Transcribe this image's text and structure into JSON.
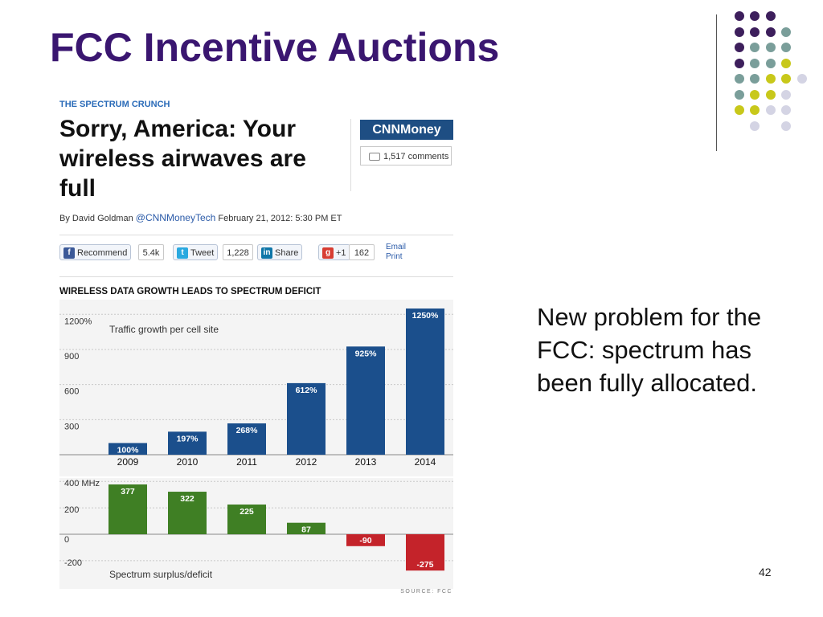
{
  "slide": {
    "title": "FCC Incentive Auctions",
    "body_text": "New problem for the FCC: spectrum has been fully allocated.",
    "page_number": "42"
  },
  "article": {
    "kicker": "THE SPECTRUM CRUNCH",
    "headline": "Sorry, America: Your wireless airwaves are full",
    "byline_prefix": "By David Goldman",
    "byline_handle": "@CNNMoneyTech",
    "byline_date": "February 21, 2012: 5:30 PM ET",
    "brand": "CNNMoney",
    "comments": "1,517 comments",
    "share_buttons": [
      {
        "label": "Recommend",
        "count": "5.4k",
        "icon": "facebook-icon",
        "color": "#3b5998"
      },
      {
        "label": "Tweet",
        "count": "1,228",
        "icon": "twitter-icon",
        "color": "#2aa9e0"
      },
      {
        "label": "Share",
        "count": "",
        "icon": "linkedin-icon",
        "color": "#0e76a8"
      },
      {
        "label": "+1",
        "count": "162",
        "icon": "google-plus-icon",
        "color": "#d73d32"
      }
    ],
    "email_label": "Email",
    "print_label": "Print"
  },
  "chart_data": [
    {
      "type": "bar",
      "title": "WIRELESS DATA GROWTH LEADS TO SPECTRUM DEFICIT",
      "annotation": "Traffic growth per cell site",
      "categories": [
        "2009",
        "2010",
        "2011",
        "2012",
        "2013",
        "2014"
      ],
      "values": [
        100,
        197,
        268,
        612,
        925,
        1250
      ],
      "value_labels": [
        "100%",
        "197%",
        "268%",
        "612%",
        "925%",
        "1250%"
      ],
      "yticks": [
        "300",
        "600",
        "900",
        "1200%"
      ],
      "ytick_values": [
        300,
        600,
        900,
        1200
      ],
      "ylim": [
        0,
        1250
      ],
      "grid": true,
      "color": "#1b4f8c"
    },
    {
      "type": "bar",
      "annotation": "Spectrum surplus/deficit",
      "categories": [
        "2009",
        "2010",
        "2011",
        "2012",
        "2013",
        "2014"
      ],
      "values": [
        377,
        322,
        225,
        87,
        -90,
        -275
      ],
      "value_labels": [
        "377",
        "322",
        "225",
        "87",
        "-90",
        "-275"
      ],
      "yticks": [
        "-200",
        "0",
        "200",
        "400 MHz"
      ],
      "ytick_values": [
        -200,
        0,
        200,
        400
      ],
      "ylim": [
        -275,
        400
      ],
      "grid": true,
      "positive_color": "#3f7f24",
      "negative_color": "#c4232a",
      "source": "SOURCE: FCC"
    }
  ],
  "decor": {
    "dot_colors": [
      "#3d1f5c",
      "#7a9e9a",
      "#c8c81a",
      "#d4d4e4"
    ]
  }
}
